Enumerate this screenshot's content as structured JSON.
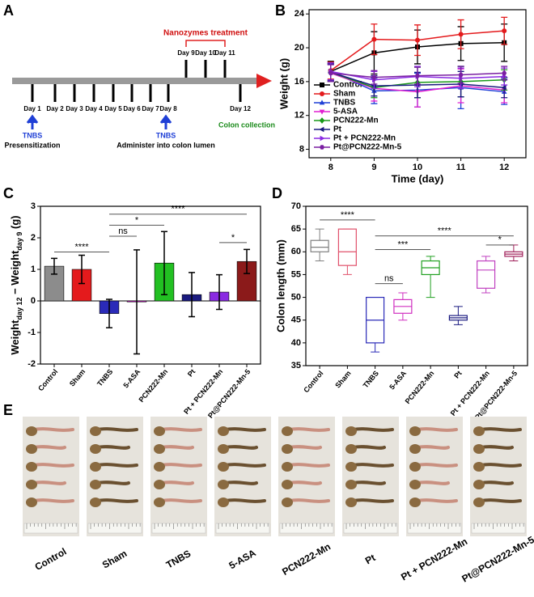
{
  "panel_letters": [
    "A",
    "B",
    "C",
    "D",
    "E"
  ],
  "timeline": {
    "treatment_label": "Nanozymes treatment",
    "treatment_days": [
      "Day 9",
      "Day 10",
      "Day 11"
    ],
    "days": [
      "Day 1",
      "Day 2",
      "Day 3",
      "Day 4",
      "Day 5",
      "Day 6",
      "Day 7",
      "Day 8"
    ],
    "end_day": "Day 12",
    "steps": [
      {
        "agent": "TNBS",
        "label": "Presensitization"
      },
      {
        "agent": "TNBS",
        "label": "Administer into colon lumen"
      }
    ],
    "end_label": "Colon collection"
  },
  "chart_data": [
    {
      "type": "line",
      "x_label": "Time (day)",
      "y_label": "Weight (g)",
      "x": [
        8,
        9,
        10,
        11,
        12
      ],
      "xlim": [
        7.5,
        12.5
      ],
      "xticks": [
        8,
        9,
        10,
        11,
        12
      ],
      "ylim": [
        7,
        24.5
      ],
      "yticks": [
        8,
        12,
        16,
        20,
        24
      ],
      "legend": "lower left",
      "series": [
        {
          "name": "Control",
          "color": "#000000",
          "marker": "square",
          "values": [
            17.2,
            19.4,
            20.1,
            20.5,
            20.6
          ],
          "errors": [
            1.2,
            2.5,
            2.0,
            2.0,
            2.2
          ]
        },
        {
          "name": "Sham",
          "color": "#e41a1c",
          "marker": "circle",
          "values": [
            17.3,
            21.0,
            20.9,
            21.6,
            22.0
          ],
          "errors": [
            1.0,
            1.8,
            1.8,
            1.7,
            1.6
          ]
        },
        {
          "name": "TNBS",
          "color": "#1f3fd6",
          "marker": "triangle-up",
          "values": [
            17.2,
            14.9,
            15.0,
            15.3,
            14.8
          ],
          "errors": [
            1.0,
            1.5,
            2.0,
            2.5,
            1.5
          ]
        },
        {
          "name": "5-ASA",
          "color": "#e020d0",
          "marker": "triangle-down",
          "values": [
            17.0,
            15.2,
            14.8,
            15.5,
            15.0
          ],
          "errors": [
            1.0,
            1.5,
            1.8,
            2.0,
            1.5
          ]
        },
        {
          "name": "PCN222-Mn",
          "color": "#1a9a1a",
          "marker": "diamond",
          "values": [
            17.1,
            15.3,
            15.9,
            16.0,
            16.2
          ],
          "errors": [
            1.0,
            1.2,
            1.8,
            1.8,
            1.2
          ]
        },
        {
          "name": "Pt",
          "color": "#1a1a80",
          "marker": "triangle-left",
          "values": [
            17.1,
            15.5,
            15.6,
            15.7,
            15.3
          ],
          "errors": [
            1.0,
            1.2,
            1.5,
            1.5,
            1.2
          ]
        },
        {
          "name": "Pt + PCN222-Mn",
          "color": "#8a2be2",
          "marker": "triangle-right",
          "values": [
            17.2,
            16.2,
            16.6,
            16.4,
            16.6
          ],
          "errors": [
            1.0,
            1.0,
            1.2,
            1.2,
            1.0
          ]
        },
        {
          "name": "Pt@PCN222-Mn-5",
          "color": "#7a1fa2",
          "marker": "hexagon",
          "values": [
            17.0,
            16.5,
            16.7,
            16.8,
            17.0
          ],
          "errors": [
            1.0,
            0.8,
            1.0,
            1.0,
            0.8
          ]
        }
      ]
    },
    {
      "type": "bar",
      "y_label": {
        "parts": [
          "Weight",
          "day 12",
          " − Weight",
          "day 9",
          " (g)"
        ]
      },
      "categories": [
        "Control",
        "Sham",
        "TNBS",
        "5-ASA",
        "PCN222-Mn",
        "Pt",
        "Pt + PCN222-Mn",
        "Pt@PCN222-Mn-5"
      ],
      "values": [
        1.1,
        1.0,
        -0.4,
        -0.03,
        1.2,
        0.2,
        0.28,
        1.25
      ],
      "errors": [
        0.25,
        0.45,
        0.45,
        1.65,
        1.0,
        0.7,
        0.55,
        0.38
      ],
      "colors": [
        "#8c8c8c",
        "#e41a1c",
        "#2a2ab8",
        "#e020e0",
        "#22c022",
        "#1a1a80",
        "#8a2be2",
        "#8b1a1a"
      ],
      "ylim": [
        -2,
        3
      ],
      "yticks": [
        -2,
        -1,
        0,
        1,
        2,
        3
      ],
      "annotations": [
        "****",
        "ns",
        "*",
        "****",
        "*"
      ]
    },
    {
      "type": "box",
      "y_label": "Colon length (mm)",
      "categories": [
        "Control",
        "Sham",
        "TNBS",
        "5-ASA",
        "PCN222-Mn",
        "Pt",
        "Pt + PCN222-Mn",
        "Pt@PCN222-Mn-5"
      ],
      "boxes": [
        {
          "min": 58,
          "q1": 60,
          "median": 61,
          "q3": 62.5,
          "max": 65
        },
        {
          "min": 55,
          "q1": 57,
          "median": 60,
          "q3": 65,
          "max": 65
        },
        {
          "min": 38,
          "q1": 40,
          "median": 45,
          "q3": 50,
          "max": 50
        },
        {
          "min": 45,
          "q1": 46.5,
          "median": 48,
          "q3": 49.5,
          "max": 51
        },
        {
          "min": 50,
          "q1": 55,
          "median": 56.5,
          "q3": 58,
          "max": 59
        },
        {
          "min": 44,
          "q1": 45,
          "median": 45.5,
          "q3": 46,
          "max": 48
        },
        {
          "min": 51,
          "q1": 52,
          "median": 56,
          "q3": 58,
          "max": 59
        },
        {
          "min": 58,
          "q1": 59,
          "median": 59.5,
          "q3": 60,
          "max": 61.5
        }
      ],
      "colors": [
        "#7f7f7f",
        "#e0506a",
        "#2a2ab8",
        "#d030c0",
        "#22a022",
        "#1a1a80",
        "#c040c0",
        "#a0205a"
      ],
      "ylim": [
        35,
        70
      ],
      "yticks": [
        35,
        40,
        45,
        50,
        55,
        60,
        65,
        70
      ],
      "annotations": [
        "****",
        "ns",
        "***",
        "****",
        "*"
      ]
    }
  ],
  "photos": {
    "labels": [
      "Control",
      "Sham",
      "TNBS",
      "5-ASA",
      "PCN222-Mn",
      "Pt",
      "Pt + PCN222-Mn",
      "Pt@PCN222-Mn-5"
    ]
  }
}
